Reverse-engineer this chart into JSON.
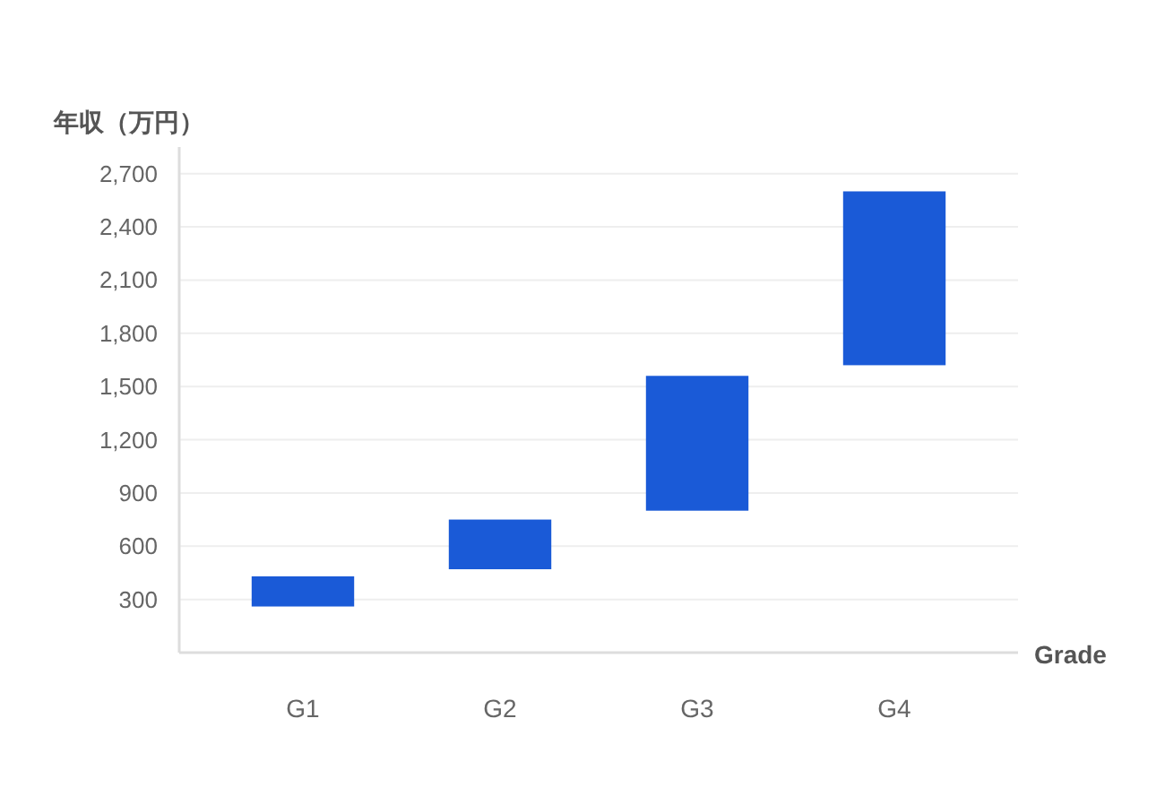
{
  "chart_data": {
    "type": "bar",
    "xlabel": "Grade",
    "ylabel": "年収（万円）",
    "categories": [
      "G1",
      "G2",
      "G3",
      "G4"
    ],
    "base": [
      260,
      470,
      800,
      1620
    ],
    "values": [
      170,
      280,
      760,
      980
    ],
    "color": "#1a5ad7",
    "ylim": [
      0,
      2850
    ],
    "yticks": [
      {
        "value": 300,
        "label": "300"
      },
      {
        "value": 600,
        "label": "600"
      },
      {
        "value": 900,
        "label": "900"
      },
      {
        "value": 1200,
        "label": "1,200"
      },
      {
        "value": 1500,
        "label": "1,500"
      },
      {
        "value": 1800,
        "label": "1,800"
      },
      {
        "value": 2100,
        "label": "2,100"
      },
      {
        "value": 2400,
        "label": "2,400"
      },
      {
        "value": 2700,
        "label": "2,700"
      }
    ],
    "grid": "y"
  }
}
